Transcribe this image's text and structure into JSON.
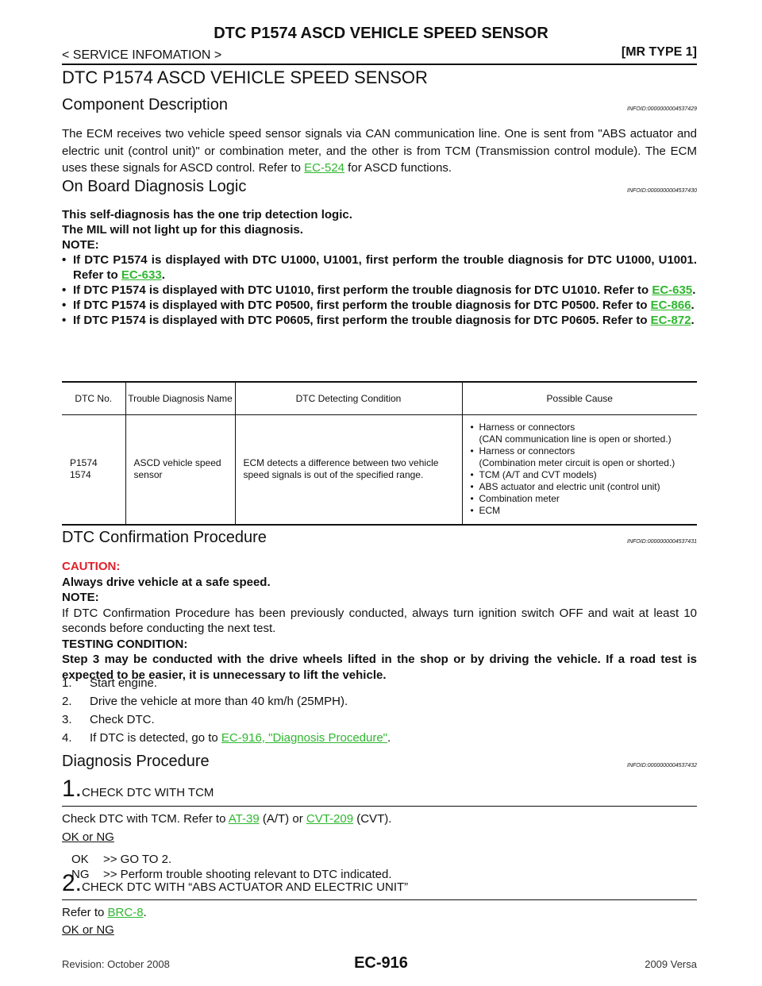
{
  "header": {
    "title": "DTC P1574 ASCD VEHICLE SPEED SENSOR",
    "section": "< SERVICE INFOMATION >",
    "model": "[MR TYPE 1]"
  },
  "main_title": "DTC P1574 ASCD VEHICLE SPEED SENSOR",
  "component": {
    "heading": "Component Description",
    "infoid": "INFOID:0000000004537429",
    "body": [
      "The ECM receives two vehicle speed sensor signals via CAN communication line. One is sent from \"ABS actuator and electric unit (control unit)\" or combination meter, and the other is from TCM (Transmission control module). The ECM uses these signals for ASCD control. Refer to ",
      "EC-524",
      " for ASCD functions."
    ]
  },
  "obd": {
    "heading": "On Board Diagnosis Logic",
    "infoid": "INFOID:0000000004537430",
    "lines": [
      "This self-diagnosis has the one trip detection logic.",
      "The MIL will not light up for this diagnosis.",
      "NOTE:"
    ],
    "bullets": [
      [
        "If DTC P1574 is displayed with DTC U1000, U1001, first perform the trouble diagnosis for DTC U1000, U1001. Refer to ",
        "EC-633",
        "."
      ],
      [
        "If DTC P1574 is displayed with DTC U1010, first perform the trouble diagnosis for DTC U1010. Refer to ",
        "EC-635",
        "."
      ],
      [
        "If DTC P1574 is displayed with DTC P0500, first perform the trouble diagnosis for DTC P0500. Refer to ",
        "EC-866",
        "."
      ],
      [
        "If DTC P1574 is displayed with DTC P0605, first perform the trouble diagnosis for DTC P0605. Refer to ",
        "EC-872",
        "."
      ]
    ]
  },
  "table": {
    "headers": [
      "DTC No.",
      "Trouble Diagnosis Name",
      "DTC Detecting Condition",
      "Possible Cause"
    ],
    "rows": [
      {
        "dtc": [
          "P1574",
          "1574"
        ],
        "name": "ASCD vehicle speed sensor",
        "condition": "ECM detects a difference between two vehicle speed signals is out of the specified range.",
        "causes": [
          [
            "Harness or connectors",
            "(CAN communication line is open or shorted.)"
          ],
          [
            "Harness or connectors",
            "(Combination meter circuit is open or shorted.)"
          ],
          [
            "TCM (A/T and CVT models)"
          ],
          [
            "ABS actuator and electric unit (control unit)"
          ],
          [
            "Combination meter"
          ],
          [
            "ECM"
          ]
        ]
      }
    ]
  },
  "confirmation": {
    "heading": "DTC Confirmation Procedure",
    "infoid": "INFOID:0000000004537431",
    "caution_label": "CAUTION:",
    "caution": "Always drive vehicle at a safe speed.",
    "note_label": "NOTE:",
    "note": "If DTC Confirmation Procedure has been previously conducted, always turn ignition switch OFF and wait at least 10 seconds before conducting the next test.",
    "testing_label": "TESTING CONDITION:",
    "testing": "Step 3 may be conducted with the drive wheels lifted in the shop or by driving the vehicle. If a road test is expected to be easier, it is unnecessary to lift the vehicle.",
    "steps": [
      [
        "1.",
        "Start engine."
      ],
      [
        "2.",
        "Drive the vehicle at more than 40 km/h (25MPH)."
      ],
      [
        "3.",
        "Check DTC."
      ],
      [
        "4.",
        "If DTC is detected, go to ",
        "EC-916, \"Diagnosis Procedure\"",
        "."
      ]
    ]
  },
  "diagnosis": {
    "heading": "Diagnosis Procedure",
    "infoid": "INFOID:0000000004537432",
    "step1": {
      "num": "1.",
      "title": "CHECK DTC WITH TCM",
      "body": [
        "Check DTC with TCM. Refer to ",
        "AT-39",
        " (A/T) or ",
        "CVT-209",
        " (CVT)."
      ],
      "ok_ng": "OK or NG",
      "results": [
        [
          "OK",
          ">> GO TO 2."
        ],
        [
          "NG",
          ">> Perform trouble shooting relevant to DTC indicated."
        ]
      ]
    },
    "step2": {
      "num": "2.",
      "title": "CHECK DTC WITH “ABS ACTUATOR AND ELECTRIC UNIT”",
      "body": [
        "Refer to ",
        "BRC-8",
        "."
      ],
      "ok_ng": "OK or NG"
    }
  },
  "footer": {
    "revision": "Revision: October 2008",
    "page": "EC-916",
    "model": "2009 Versa"
  }
}
